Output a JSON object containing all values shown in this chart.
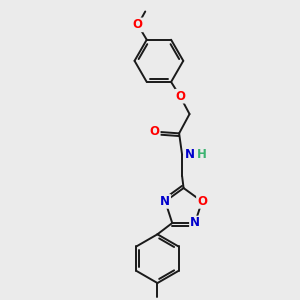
{
  "background_color": "#ebebeb",
  "bond_color": "#1a1a1a",
  "atom_colors": {
    "O": "#ff0000",
    "N": "#0000cc",
    "H": "#3cb371",
    "C": "#1a1a1a"
  },
  "font_size_atom": 8.5,
  "figsize": [
    3.0,
    3.0
  ],
  "dpi": 100
}
